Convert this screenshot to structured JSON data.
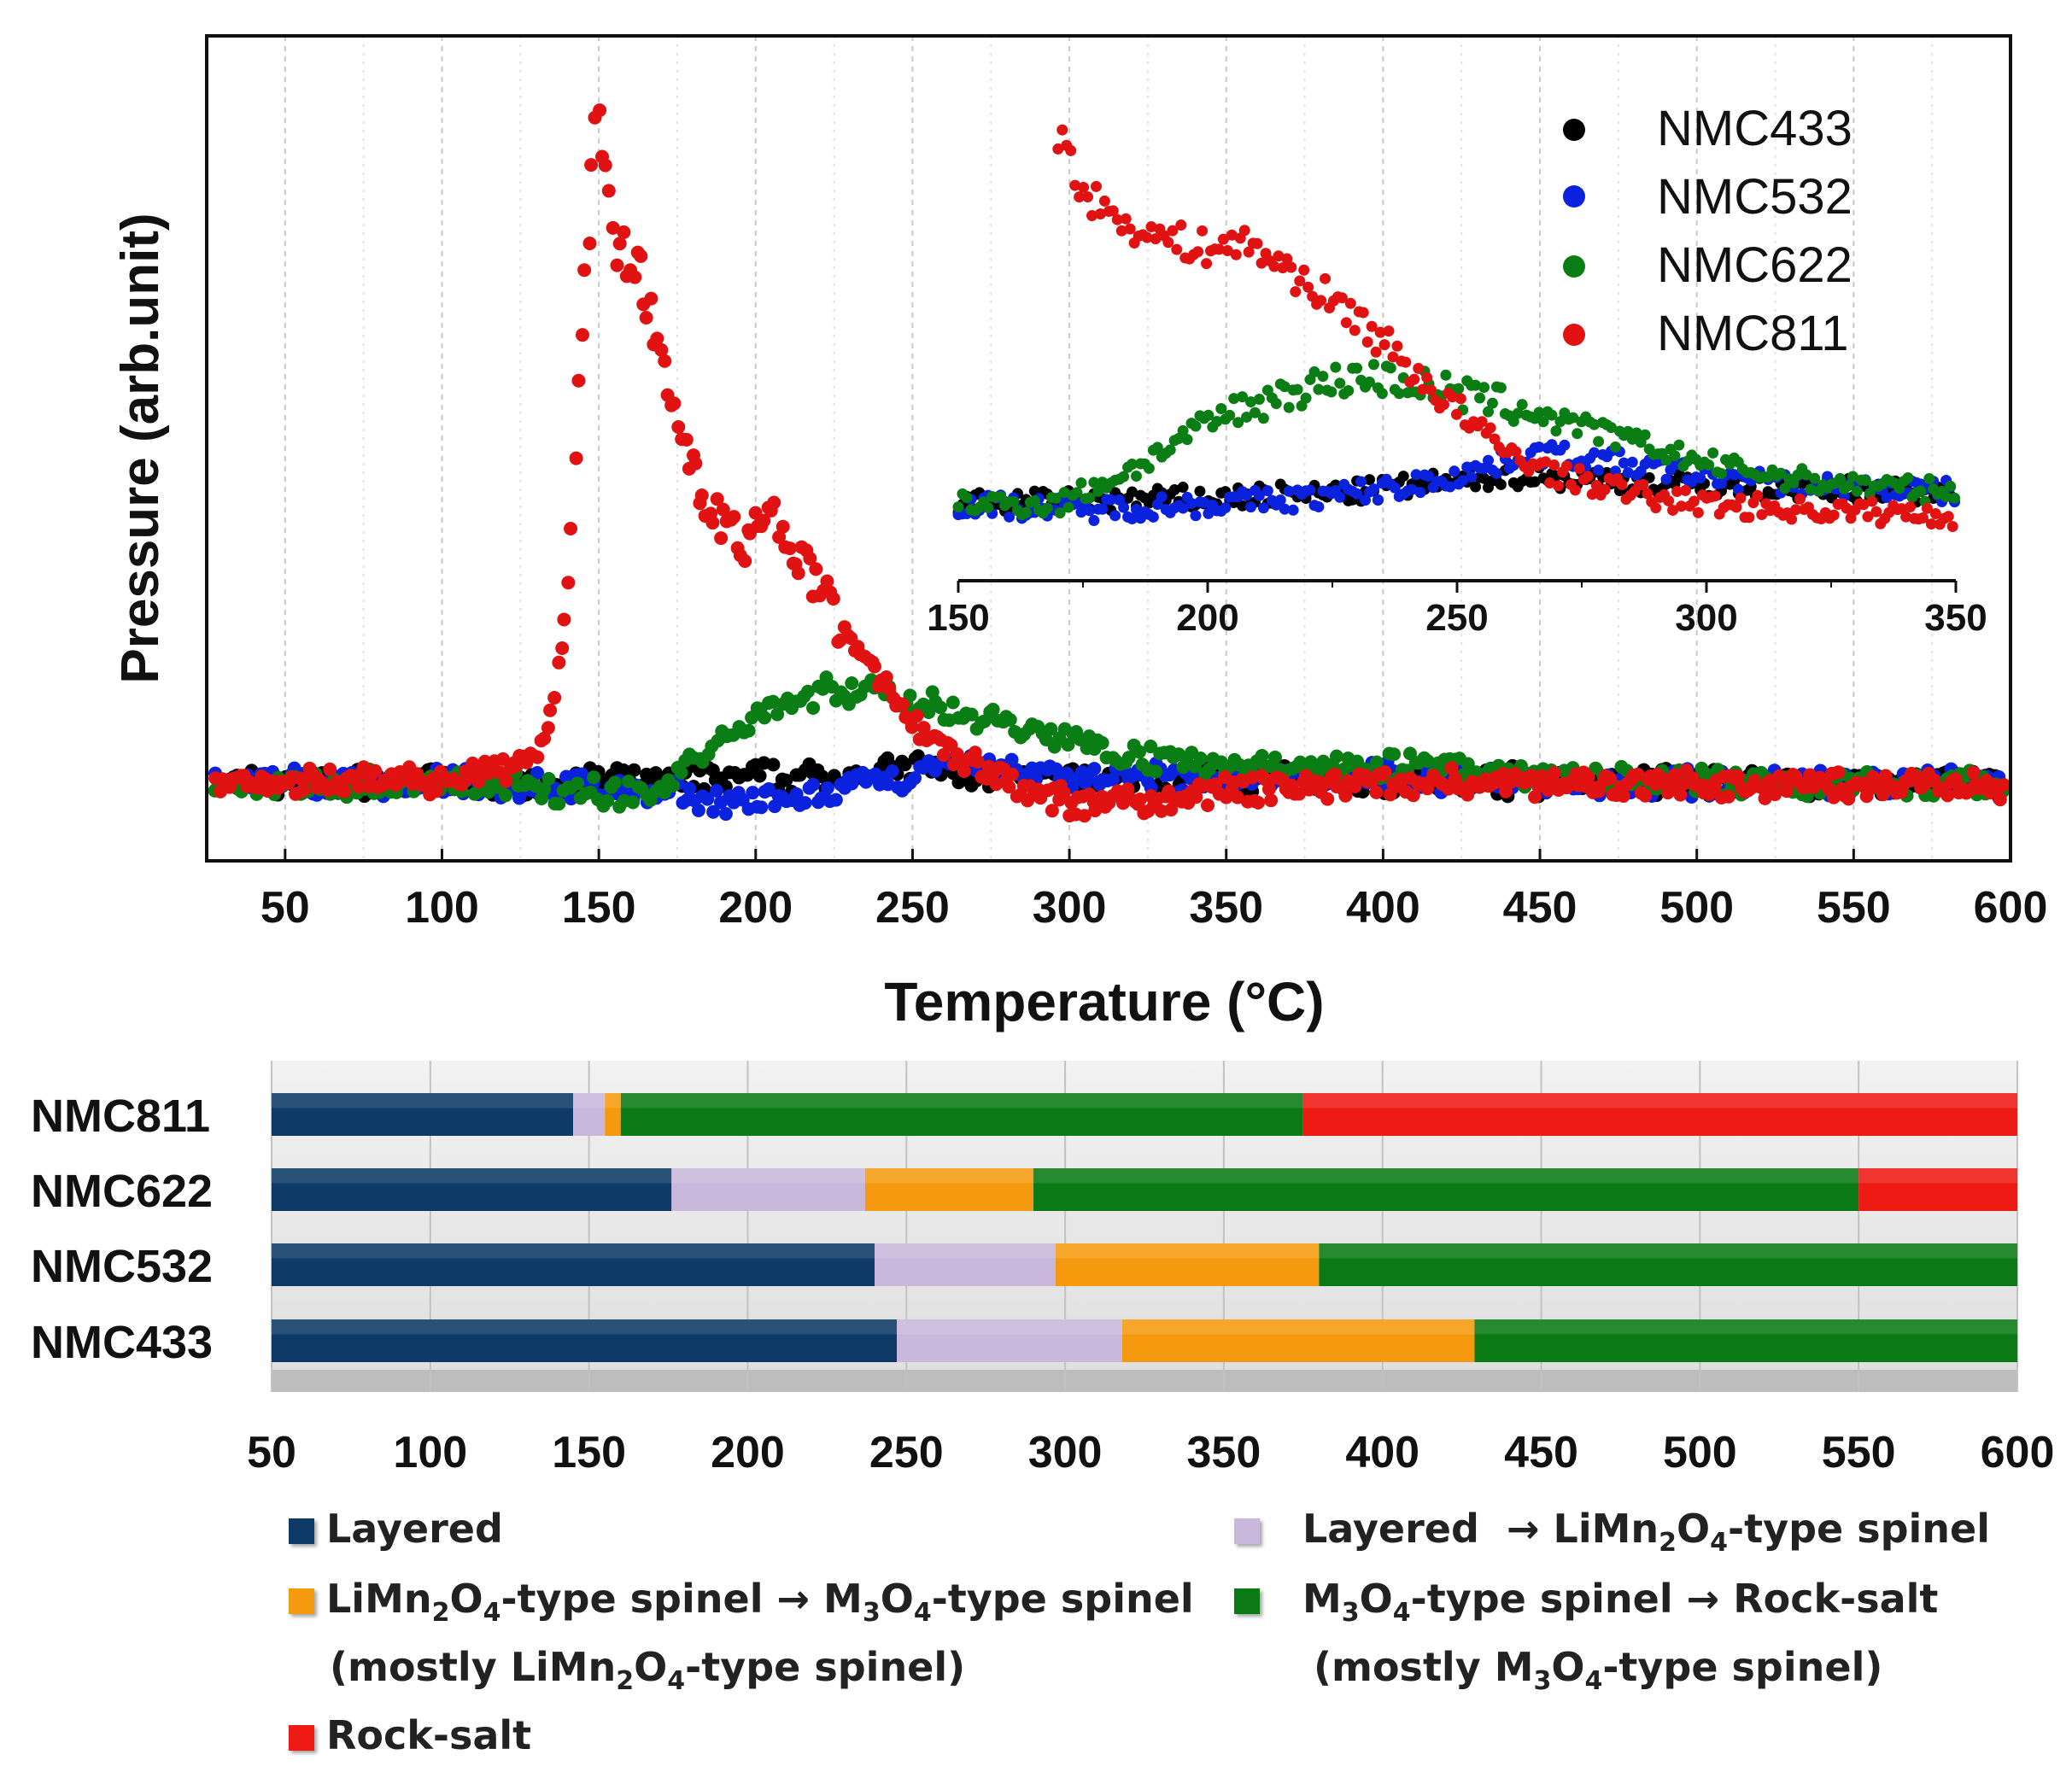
{
  "chart_data": [
    {
      "type": "scatter",
      "title": "",
      "xlabel": "Temperature (°C)",
      "ylabel": "Pressure (arb.unit)",
      "xlim": [
        25,
        600
      ],
      "ylim": [
        0,
        1
      ],
      "x_ticks": [
        50,
        100,
        150,
        200,
        250,
        300,
        350,
        400,
        450,
        500,
        550,
        600
      ],
      "legend_position": "top-right",
      "series": [
        {
          "name": "NMC433",
          "color": "#000000",
          "x": [
            30,
            100,
            130,
            160,
            190,
            220,
            240,
            250,
            260,
            280,
            300,
            330,
            360,
            380,
            400,
            420,
            450,
            480,
            520,
            560,
            600
          ],
          "y": [
            0.125,
            0.125,
            0.126,
            0.128,
            0.13,
            0.132,
            0.138,
            0.145,
            0.14,
            0.132,
            0.128,
            0.127,
            0.128,
            0.13,
            0.129,
            0.128,
            0.127,
            0.126,
            0.125,
            0.124,
            0.123
          ]
        },
        {
          "name": "NMC532",
          "color": "#0a22dd",
          "x": [
            30,
            100,
            140,
            170,
            190,
            210,
            230,
            245,
            255,
            265,
            280,
            300,
            320,
            350,
            380,
            400,
            430,
            460,
            500,
            550,
            600
          ],
          "y": [
            0.125,
            0.125,
            0.12,
            0.11,
            0.1,
            0.1,
            0.115,
            0.13,
            0.142,
            0.145,
            0.14,
            0.134,
            0.13,
            0.128,
            0.131,
            0.132,
            0.129,
            0.126,
            0.125,
            0.124,
            0.123
          ]
        },
        {
          "name": "NMC622",
          "color": "#0a7d14",
          "x": [
            30,
            100,
            140,
            160,
            170,
            180,
            190,
            200,
            215,
            230,
            240,
            250,
            260,
            275,
            290,
            310,
            330,
            350,
            380,
            400,
            430,
            460,
            500,
            550,
            600
          ],
          "y": [
            0.122,
            0.123,
            0.115,
            0.11,
            0.115,
            0.15,
            0.185,
            0.215,
            0.235,
            0.245,
            0.24,
            0.23,
            0.22,
            0.205,
            0.19,
            0.17,
            0.155,
            0.145,
            0.15,
            0.148,
            0.138,
            0.128,
            0.125,
            0.123,
            0.122
          ]
        },
        {
          "name": "NMC811",
          "color": "#e01212",
          "x": [
            30,
            100,
            115,
            125,
            130,
            135,
            140,
            143,
            146,
            149,
            150,
            152,
            155,
            158,
            162,
            165,
            170,
            175,
            180,
            185,
            190,
            195,
            200,
            205,
            210,
            215,
            220,
            230,
            240,
            250,
            260,
            270,
            285,
            300,
            310,
            330,
            350,
            400,
            450,
            500,
            550,
            600
          ],
          "y": [
            0.125,
            0.13,
            0.14,
            0.15,
            0.16,
            0.2,
            0.38,
            0.6,
            0.8,
            0.96,
            1.0,
            0.9,
            0.82,
            0.8,
            0.8,
            0.74,
            0.68,
            0.6,
            0.52,
            0.48,
            0.46,
            0.43,
            0.45,
            0.46,
            0.44,
            0.41,
            0.37,
            0.31,
            0.26,
            0.2,
            0.17,
            0.145,
            0.115,
            0.1,
            0.095,
            0.1,
            0.115,
            0.125,
            0.125,
            0.122,
            0.12,
            0.118
          ]
        }
      ],
      "inset": {
        "xlim": [
          150,
          350
        ],
        "x_ticks": [
          150,
          200,
          250,
          300,
          350
        ],
        "series": [
          {
            "name": "NMC433",
            "x": [
              150,
              200,
              230,
              250,
              260,
              280,
              300,
              330,
              350
            ],
            "y": [
              0.36,
              0.37,
              0.38,
              0.4,
              0.41,
              0.4,
              0.39,
              0.385,
              0.38
            ]
          },
          {
            "name": "NMC532",
            "x": [
              150,
              175,
              200,
              220,
              240,
              255,
              265,
              275,
              290,
              310,
              330,
              350
            ],
            "y": [
              0.36,
              0.35,
              0.36,
              0.37,
              0.39,
              0.42,
              0.45,
              0.44,
              0.42,
              0.4,
              0.39,
              0.38
            ]
          },
          {
            "name": "NMC622",
            "x": [
              150,
              170,
              185,
              200,
              215,
              230,
              240,
              250,
              265,
              280,
              300,
              320,
              350
            ],
            "y": [
              0.36,
              0.36,
              0.42,
              0.5,
              0.55,
              0.58,
              0.57,
              0.55,
              0.52,
              0.48,
              0.43,
              0.4,
              0.38
            ]
          },
          {
            "name": "NMC811",
            "x": [
              170,
              175,
              180,
              185,
              190,
              200,
              205,
              210,
              220,
              230,
              240,
              250,
              260,
              270,
              280,
              290,
              300,
              320,
              350
            ],
            "y": [
              1.0,
              0.9,
              0.86,
              0.84,
              0.82,
              0.8,
              0.81,
              0.8,
              0.74,
              0.68,
              0.6,
              0.52,
              0.45,
              0.41,
              0.39,
              0.37,
              0.36,
              0.35,
              0.34
            ]
          }
        ]
      }
    },
    {
      "type": "bar",
      "orientation": "horizontal-stacked",
      "xlim": [
        50,
        600
      ],
      "x_ticks": [
        50,
        100,
        150,
        200,
        250,
        300,
        350,
        400,
        450,
        500,
        550,
        600
      ],
      "categories": [
        "NMC811",
        "NMC622",
        "NMC532",
        "NMC433"
      ],
      "phases": [
        "Layered",
        "Layered → LiMn2O4-type spinel",
        "LiMn2O4-type spinel → M3O4-type spinel",
        "M3O4-type spinel → Rock-salt",
        "Rock-salt"
      ],
      "phase_colors": [
        "#0d3a66",
        "#c9b8dc",
        "#f59a0e",
        "#0a7a14",
        "#ee1a14"
      ],
      "boundaries": [
        [
          145,
          155,
          160,
          375,
          600
        ],
        [
          176,
          237,
          290,
          550,
          600
        ],
        [
          240,
          297,
          380,
          600,
          600
        ],
        [
          247,
          318,
          429,
          600,
          600
        ]
      ]
    }
  ],
  "legend_bottom": {
    "layered": "Layered",
    "layered_spinel": {
      "a": "Layered",
      "arrow": "→",
      "b": "LiMn",
      "b2": "2",
      "c": "O",
      "c2": "4",
      "d": "-type spinel"
    },
    "limn_m3o4": {
      "a": "LiMn",
      "a2": "2",
      "b": "O",
      "b2": "4",
      "c": "-type spinel",
      "arrow": "→",
      "d": "M",
      "d2": "3",
      "e": "O",
      "e2": "4",
      "f": "-type spinel"
    },
    "limn_m3o4_note": {
      "a": "(mostly LiMn",
      "a2": "2",
      "b": "O",
      "b2": "4",
      "c": "-type spinel)"
    },
    "m3o4_rock": {
      "a": "M",
      "a2": "3",
      "b": "O",
      "b2": "4",
      "c": "-type spinel",
      "arrow": "→",
      "d": "Rock-salt"
    },
    "m3o4_rock_note": {
      "a": "(mostly M",
      "a2": "3",
      "b": "O",
      "b2": "4",
      "c": "-type spinel)"
    },
    "rocksalt": "Rock-salt"
  }
}
